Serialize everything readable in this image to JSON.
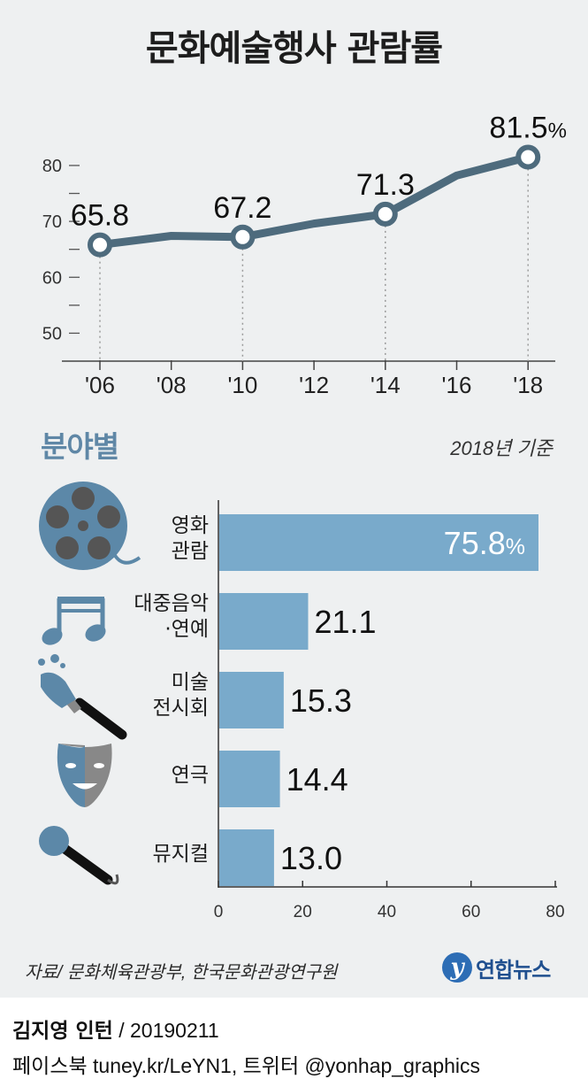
{
  "title": "문화예술행사 관람률",
  "chart_data": [
    {
      "type": "line",
      "title": "문화예술행사 관람률",
      "x": [
        "'06",
        "'08",
        "'10",
        "'12",
        "'14",
        "'16",
        "'18"
      ],
      "values": [
        65.8,
        67.4,
        67.2,
        69.6,
        71.3,
        78.2,
        81.5
      ],
      "point_labels": [
        {
          "x": "'06",
          "label": "65.8"
        },
        {
          "x": "'10",
          "label": "67.2"
        },
        {
          "x": "'14",
          "label": "71.3"
        },
        {
          "x": "'18",
          "label": "81.5",
          "unit": "%"
        }
      ],
      "yticks": [
        50,
        60,
        70,
        80
      ],
      "ylim": [
        45,
        83
      ],
      "grid": false,
      "colors": {
        "line": "#4e6b7d",
        "marker_fill": "#ffffff",
        "guide": "#999999"
      }
    },
    {
      "type": "bar",
      "orientation": "horizontal",
      "title": "분야별",
      "note": "2018년 기준",
      "categories": [
        "영화\n관람",
        "대중음악\n·연예",
        "미술\n전시회",
        "연극",
        "뮤지컬"
      ],
      "category_icons": [
        "film-reel-icon",
        "music-note-icon",
        "paint-brush-icon",
        "theater-mask-icon",
        "microphone-icon"
      ],
      "values": [
        75.8,
        21.1,
        15.3,
        14.4,
        13.0
      ],
      "value_labels": [
        "75.8",
        "21.1",
        "15.3",
        "14.4",
        "13.0"
      ],
      "first_value_unit": "%",
      "xticks": [
        0,
        20,
        40,
        60,
        80
      ],
      "xlim": [
        0,
        80
      ],
      "grid": false,
      "colors": {
        "bar": "#79aacb",
        "icon": "#5c88a8"
      }
    }
  ],
  "footer": {
    "source": "자료/ 문화체육관광부, 한국문화관광연구원",
    "agency": "연합뉴스",
    "agency_mark": "y",
    "author": "김지영 인턴",
    "date": " / 20190211",
    "social": "페이스북 tuney.kr/LeYN1, 트위터 @yonhap_graphics"
  }
}
